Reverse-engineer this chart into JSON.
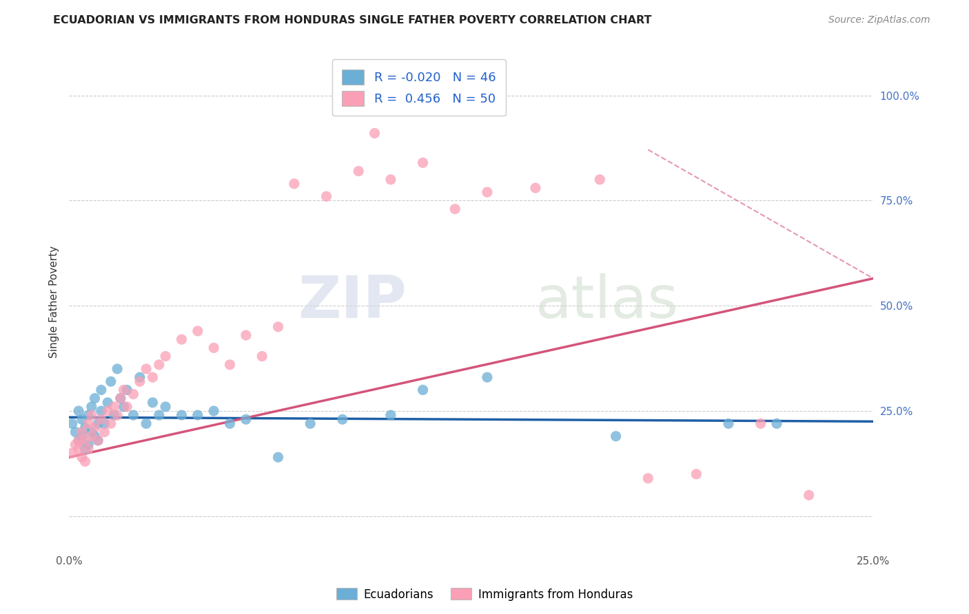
{
  "title": "ECUADORIAN VS IMMIGRANTS FROM HONDURAS SINGLE FATHER POVERTY CORRELATION CHART",
  "source": "Source: ZipAtlas.com",
  "ylabel": "Single Father Poverty",
  "xlim": [
    0.0,
    0.25
  ],
  "ylim": [
    -0.08,
    1.1
  ],
  "R_blue": -0.02,
  "N_blue": 46,
  "R_pink": 0.456,
  "N_pink": 50,
  "color_blue": "#6baed6",
  "color_pink": "#fa9fb5",
  "color_blue_line": "#1f5fa6",
  "color_pink_line": "#d4547a",
  "blue_scatter_x": [
    0.001,
    0.002,
    0.003,
    0.003,
    0.004,
    0.004,
    0.005,
    0.005,
    0.006,
    0.006,
    0.007,
    0.007,
    0.008,
    0.008,
    0.009,
    0.009,
    0.01,
    0.01,
    0.011,
    0.012,
    0.013,
    0.014,
    0.015,
    0.016,
    0.017,
    0.018,
    0.02,
    0.022,
    0.024,
    0.026,
    0.028,
    0.03,
    0.035,
    0.04,
    0.045,
    0.05,
    0.055,
    0.065,
    0.075,
    0.085,
    0.1,
    0.11,
    0.13,
    0.17,
    0.205,
    0.22
  ],
  "blue_scatter_y": [
    0.22,
    0.2,
    0.18,
    0.25,
    0.19,
    0.23,
    0.16,
    0.21,
    0.17,
    0.24,
    0.2,
    0.26,
    0.19,
    0.28,
    0.22,
    0.18,
    0.25,
    0.3,
    0.22,
    0.27,
    0.32,
    0.24,
    0.35,
    0.28,
    0.26,
    0.3,
    0.24,
    0.33,
    0.22,
    0.27,
    0.24,
    0.26,
    0.24,
    0.24,
    0.25,
    0.22,
    0.23,
    0.14,
    0.22,
    0.23,
    0.24,
    0.3,
    0.33,
    0.19,
    0.22,
    0.22
  ],
  "pink_scatter_x": [
    0.001,
    0.002,
    0.003,
    0.003,
    0.004,
    0.004,
    0.005,
    0.005,
    0.006,
    0.006,
    0.007,
    0.007,
    0.008,
    0.009,
    0.01,
    0.011,
    0.012,
    0.013,
    0.014,
    0.015,
    0.016,
    0.017,
    0.018,
    0.02,
    0.022,
    0.024,
    0.026,
    0.028,
    0.03,
    0.035,
    0.04,
    0.045,
    0.05,
    0.055,
    0.06,
    0.065,
    0.07,
    0.08,
    0.09,
    0.095,
    0.1,
    0.11,
    0.12,
    0.13,
    0.145,
    0.165,
    0.18,
    0.195,
    0.215,
    0.23
  ],
  "pink_scatter_y": [
    0.15,
    0.17,
    0.16,
    0.18,
    0.14,
    0.2,
    0.13,
    0.18,
    0.16,
    0.22,
    0.19,
    0.24,
    0.21,
    0.18,
    0.23,
    0.2,
    0.25,
    0.22,
    0.26,
    0.24,
    0.28,
    0.3,
    0.26,
    0.29,
    0.32,
    0.35,
    0.33,
    0.36,
    0.38,
    0.42,
    0.44,
    0.4,
    0.36,
    0.43,
    0.38,
    0.45,
    0.79,
    0.76,
    0.82,
    0.91,
    0.8,
    0.84,
    0.73,
    0.77,
    0.78,
    0.8,
    0.09,
    0.1,
    0.22,
    0.05
  ],
  "background_color": "#ffffff",
  "grid_color": "#cccccc",
  "blue_line_y0": 0.235,
  "blue_line_y1": 0.225,
  "pink_line_x0": 0.0,
  "pink_line_x1": 0.25,
  "pink_line_y0": 0.14,
  "pink_line_y1": 0.565
}
